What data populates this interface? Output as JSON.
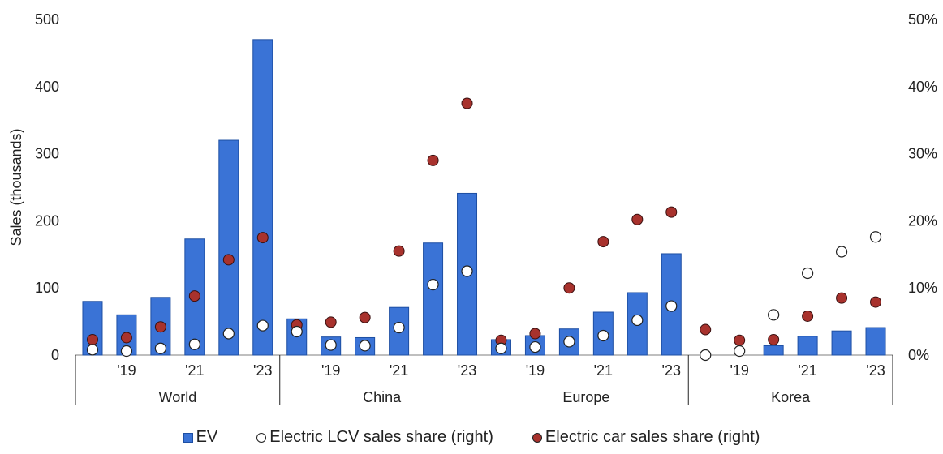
{
  "chart_data": {
    "type": "bar",
    "ylabel": "Sales (thousands)",
    "ylim": [
      0,
      500
    ],
    "y_ticks": [
      "0",
      "100",
      "200",
      "300",
      "400",
      "500"
    ],
    "y2lim": [
      0,
      50
    ],
    "y2_ticks": [
      "0%",
      "10%",
      "20%",
      "30%",
      "40%",
      "50%"
    ],
    "grid": false,
    "legend_position": "bottom",
    "year_labels": [
      "",
      "'19",
      "",
      "'21",
      "",
      "'23"
    ],
    "groups": [
      {
        "name": "World",
        "ev": [
          80,
          60,
          86,
          173,
          320,
          470
        ],
        "lcv_share": [
          0.8,
          0.6,
          1.0,
          1.6,
          3.2,
          4.4
        ],
        "car_share": [
          2.3,
          2.6,
          4.2,
          8.8,
          14.2,
          17.5
        ]
      },
      {
        "name": "China",
        "ev": [
          54,
          27,
          26,
          71,
          167,
          241
        ],
        "lcv_share": [
          3.5,
          1.5,
          1.4,
          4.1,
          10.5,
          12.5
        ],
        "car_share": [
          4.5,
          4.9,
          5.6,
          15.5,
          29.0,
          37.5
        ]
      },
      {
        "name": "Europe",
        "ev": [
          23,
          29,
          39,
          64,
          93,
          151
        ],
        "lcv_share": [
          1.0,
          1.2,
          2.0,
          2.9,
          5.2,
          7.3
        ],
        "car_share": [
          2.2,
          3.2,
          10.0,
          16.9,
          20.2,
          21.3
        ]
      },
      {
        "name": "Korea",
        "ev": [
          0,
          0,
          14,
          28,
          36,
          41
        ],
        "lcv_share": [
          0.0,
          0.6,
          6.0,
          12.2,
          15.4,
          17.6
        ],
        "car_share": [
          3.8,
          2.2,
          2.3,
          5.8,
          8.5,
          7.9
        ]
      }
    ],
    "series": [
      {
        "name": "EV",
        "axis": "left",
        "kind": "bar",
        "color": "#3a73d6"
      },
      {
        "name": "Electric LCV sales share (right)",
        "axis": "right",
        "kind": "marker",
        "color": "#ffffff"
      },
      {
        "name": "Electric car sales share (right)",
        "axis": "right",
        "kind": "marker",
        "color": "#a8322d"
      }
    ]
  }
}
